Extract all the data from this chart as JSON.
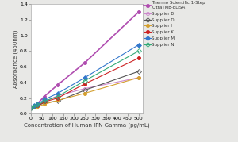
{
  "x": [
    0,
    15.6,
    31.25,
    62.5,
    125,
    250,
    500
  ],
  "series": [
    {
      "label": "Thermo Scientific 1-Step\nUltraTMB-ELISA",
      "y": [
        0.07,
        0.1,
        0.13,
        0.22,
        0.37,
        0.65,
        1.3
      ],
      "color": "#b04db0",
      "marker": "o",
      "linestyle": "-",
      "linewidth": 1.2,
      "markersize": 3.0,
      "fillstyle": "full"
    },
    {
      "label": "Supplier B",
      "y": [
        0.07,
        0.09,
        0.11,
        0.15,
        0.23,
        0.32,
        0.46
      ],
      "color": "#cc88cc",
      "marker": "o",
      "linestyle": "-",
      "linewidth": 0.8,
      "markersize": 3.0,
      "fillstyle": "none"
    },
    {
      "label": "Supplier D",
      "y": [
        0.07,
        0.09,
        0.1,
        0.14,
        0.16,
        0.3,
        0.54
      ],
      "color": "#555555",
      "marker": "D",
      "linestyle": "-",
      "linewidth": 0.8,
      "markersize": 3.0,
      "fillstyle": "none"
    },
    {
      "label": "Supplier I",
      "y": [
        0.07,
        0.08,
        0.09,
        0.12,
        0.17,
        0.26,
        0.46
      ],
      "color": "#d4a030",
      "marker": "o",
      "linestyle": "-",
      "linewidth": 0.8,
      "markersize": 3.0,
      "fillstyle": "full"
    },
    {
      "label": "Supplier K",
      "y": [
        0.07,
        0.09,
        0.1,
        0.15,
        0.2,
        0.38,
        0.71
      ],
      "color": "#cc2222",
      "marker": "o",
      "linestyle": "-",
      "linewidth": 0.8,
      "markersize": 3.0,
      "fillstyle": "full"
    },
    {
      "label": "Supplier M",
      "y": [
        0.08,
        0.1,
        0.12,
        0.18,
        0.26,
        0.46,
        0.88
      ],
      "color": "#3377cc",
      "marker": "D",
      "linestyle": "-",
      "linewidth": 0.8,
      "markersize": 3.0,
      "fillstyle": "full"
    },
    {
      "label": "Supplier N",
      "y": [
        0.07,
        0.09,
        0.11,
        0.16,
        0.22,
        0.42,
        0.8
      ],
      "color": "#33aa77",
      "marker": "D",
      "linestyle": "-",
      "linewidth": 0.8,
      "markersize": 3.0,
      "fillstyle": "none"
    }
  ],
  "xlabel": "Concentration of Human IFN Gamma (pg/mL)",
  "ylabel": "Absorbance (450nm)",
  "xlim": [
    0,
    520
  ],
  "ylim": [
    0,
    1.4
  ],
  "yticks": [
    0.0,
    0.2,
    0.4,
    0.6,
    0.8,
    1.0,
    1.2,
    1.4
  ],
  "xticks": [
    0,
    50,
    100,
    150,
    200,
    250,
    300,
    350,
    400,
    450,
    500
  ],
  "background_color": "#e8e8e6",
  "plot_bg_color": "#ffffff"
}
